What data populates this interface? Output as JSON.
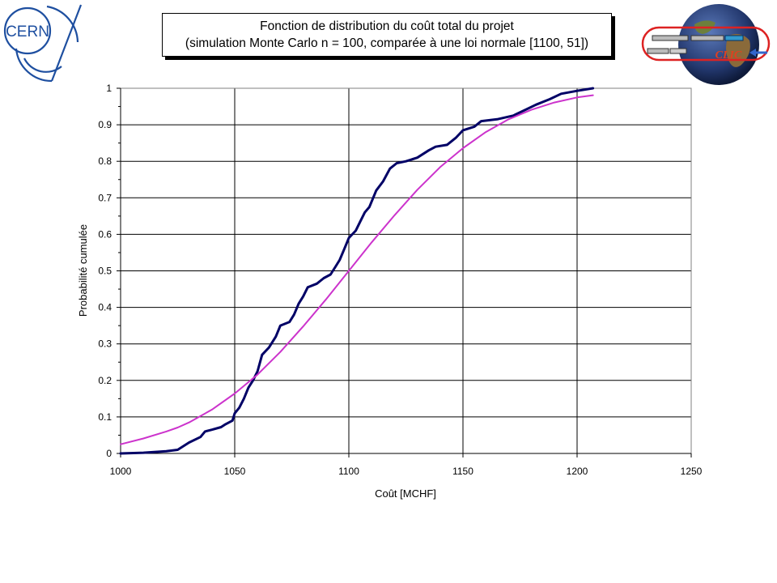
{
  "logos": {
    "cern": {
      "text": "CERN",
      "icon": "cern-logo-icon",
      "color": "#1e4fa0"
    },
    "clic": {
      "text": "CLIC",
      "icon": "clic-globe-logo-icon"
    }
  },
  "chart_data": {
    "type": "line",
    "title": "Fonction de distribution du coût total du projet",
    "subtitle": "(simulation Monte Carlo n = 100, comparée à une loi normale [1100, 51])",
    "xlabel": "Coût [MCHF]",
    "ylabel": "Probabilité cumulée",
    "xlim": [
      1000,
      1250
    ],
    "ylim": [
      0,
      1
    ],
    "x_ticks": [
      1000,
      1050,
      1100,
      1150,
      1200,
      1250
    ],
    "y_ticks": [
      0,
      0.1,
      0.2,
      0.3,
      0.4,
      0.5,
      0.6,
      0.7,
      0.8,
      0.9,
      1
    ],
    "grid": true,
    "legend": "none",
    "series": [
      {
        "color": "#000066",
        "points": [
          [
            1000,
            0.0
          ],
          [
            1010,
            0.002
          ],
          [
            1020,
            0.006
          ],
          [
            1025,
            0.01
          ],
          [
            1030,
            0.03
          ],
          [
            1035,
            0.045
          ],
          [
            1037,
            0.06
          ],
          [
            1040,
            0.065
          ],
          [
            1044,
            0.072
          ],
          [
            1046,
            0.08
          ],
          [
            1049,
            0.09
          ],
          [
            1050,
            0.11
          ],
          [
            1052,
            0.125
          ],
          [
            1054,
            0.15
          ],
          [
            1056,
            0.18
          ],
          [
            1058,
            0.2
          ],
          [
            1060,
            0.225
          ],
          [
            1062,
            0.27
          ],
          [
            1065,
            0.29
          ],
          [
            1068,
            0.32
          ],
          [
            1070,
            0.35
          ],
          [
            1074,
            0.36
          ],
          [
            1076,
            0.38
          ],
          [
            1078,
            0.41
          ],
          [
            1080,
            0.43
          ],
          [
            1082,
            0.455
          ],
          [
            1086,
            0.465
          ],
          [
            1089,
            0.48
          ],
          [
            1092,
            0.49
          ],
          [
            1094,
            0.51
          ],
          [
            1096,
            0.53
          ],
          [
            1098,
            0.56
          ],
          [
            1100,
            0.59
          ],
          [
            1103,
            0.61
          ],
          [
            1105,
            0.635
          ],
          [
            1107,
            0.66
          ],
          [
            1109,
            0.675
          ],
          [
            1112,
            0.72
          ],
          [
            1115,
            0.745
          ],
          [
            1118,
            0.78
          ],
          [
            1121,
            0.795
          ],
          [
            1125,
            0.8
          ],
          [
            1130,
            0.81
          ],
          [
            1135,
            0.83
          ],
          [
            1138,
            0.84
          ],
          [
            1143,
            0.845
          ],
          [
            1147,
            0.865
          ],
          [
            1150,
            0.885
          ],
          [
            1155,
            0.895
          ],
          [
            1158,
            0.91
          ],
          [
            1165,
            0.915
          ],
          [
            1172,
            0.925
          ],
          [
            1177,
            0.94
          ],
          [
            1182,
            0.955
          ],
          [
            1188,
            0.97
          ],
          [
            1193,
            0.985
          ],
          [
            1200,
            0.993
          ],
          [
            1207,
            1.0
          ]
        ]
      },
      {
        "color": "#cc33cc",
        "points": [
          [
            1000,
            0.025
          ],
          [
            1010,
            0.041
          ],
          [
            1020,
            0.06
          ],
          [
            1025,
            0.071
          ],
          [
            1030,
            0.085
          ],
          [
            1040,
            0.12
          ],
          [
            1050,
            0.164
          ],
          [
            1060,
            0.216
          ],
          [
            1070,
            0.278
          ],
          [
            1080,
            0.348
          ],
          [
            1090,
            0.422
          ],
          [
            1100,
            0.5
          ],
          [
            1110,
            0.578
          ],
          [
            1120,
            0.652
          ],
          [
            1130,
            0.722
          ],
          [
            1140,
            0.784
          ],
          [
            1150,
            0.836
          ],
          [
            1160,
            0.88
          ],
          [
            1170,
            0.915
          ],
          [
            1180,
            0.941
          ],
          [
            1190,
            0.961
          ],
          [
            1200,
            0.975
          ],
          [
            1207,
            0.981
          ]
        ]
      }
    ]
  }
}
